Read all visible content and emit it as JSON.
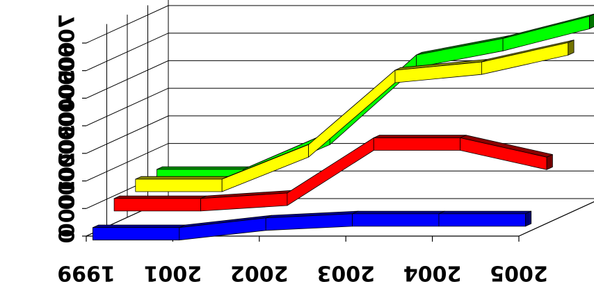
{
  "chart_data": {
    "type": "line",
    "style": "3d-ribbon",
    "categories": [
      "1999",
      "2001",
      "2002",
      "2003",
      "2004",
      "2005"
    ],
    "ylim": [
      0,
      7000
    ],
    "y_ticks": [
      "0",
      "1000",
      "2000",
      "3000",
      "4000",
      "5000",
      "6000",
      "7000"
    ],
    "grid": true,
    "legend": "none",
    "series": [
      {
        "color": "#0000ff",
        "values": [
          200,
          200,
          550,
          700,
          700,
          700
        ]
      },
      {
        "color": "#ff0000",
        "values": [
          900,
          900,
          1100,
          3100,
          3100,
          2400
        ]
      },
      {
        "color": "#ffff00",
        "values": [
          1250,
          1250,
          2500,
          5200,
          5500,
          6200
        ]
      },
      {
        "color": "#00ff00",
        "values": [
          1250,
          1250,
          2600,
          5400,
          6000,
          6800
        ]
      }
    ]
  }
}
